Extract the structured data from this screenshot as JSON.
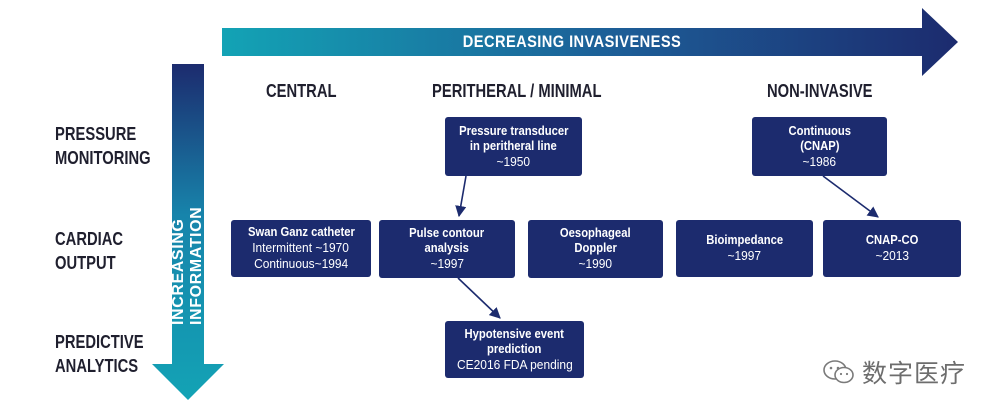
{
  "axes": {
    "horizontal_label": "DECREASING INVASIVENESS",
    "vertical_label": "INCREASING INFORMATION"
  },
  "columns": [
    "CENTRAL",
    "PERITHERAL / MINIMAL",
    "NON-INVASIVE"
  ],
  "rows": [
    [
      "PRESSURE",
      "MONITORING"
    ],
    [
      "CARDIAC",
      "OUTPUT"
    ],
    [
      "PREDICTIVE",
      "ANALYTICS"
    ]
  ],
  "nodes": {
    "swan_ganz": {
      "title": "Swan Ganz catheter",
      "lines": [
        "Intermittent ~1970",
        "Continuous~1994"
      ]
    },
    "pressure_transducer": {
      "title": [
        "Pressure transducer",
        "in peritheral line"
      ],
      "lines": [
        "~1950"
      ]
    },
    "pulse_contour": {
      "title": [
        "Pulse contour",
        "analysis"
      ],
      "lines": [
        "~1997"
      ]
    },
    "oesophageal_doppler": {
      "title": [
        "Oesophageal",
        "Doppler"
      ],
      "lines": [
        "~1990"
      ]
    },
    "hypotensive": {
      "title": [
        "Hypotensive event",
        "prediction"
      ],
      "lines": [
        "CE2016 FDA pending"
      ]
    },
    "cnap": {
      "title": [
        "Continuous",
        "(CNAP)"
      ],
      "lines": [
        "~1986"
      ]
    },
    "bioimpedance": {
      "title": [
        "Bioimpedance"
      ],
      "lines": [
        "~1997"
      ]
    },
    "cnap_co": {
      "title": [
        "CNAP-CO"
      ],
      "lines": [
        "~2013"
      ]
    }
  },
  "watermark": {
    "text": "数字医疗",
    "icon": "wechat-icon"
  },
  "colors": {
    "box": "#1c2b6e",
    "arrow_start": "#13a3b5",
    "arrow_end": "#1c2b6e",
    "text": "#1f1f2e"
  }
}
